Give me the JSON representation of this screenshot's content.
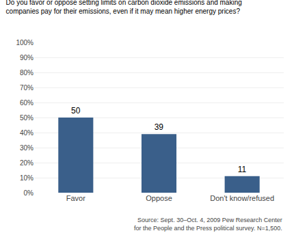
{
  "chart_data": {
    "type": "bar",
    "title": "Do you favor or oppose setting limits on carbon dioxide emissions and making\ncompanies pay for their emissions, even if it may mean higher energy prices?",
    "categories": [
      "Favor",
      "Oppose",
      "Don't know/refused"
    ],
    "values": [
      50,
      39,
      11
    ],
    "color": "#3a5f8a",
    "ylim": [
      0,
      100
    ],
    "yticks": [
      {
        "value": 0,
        "label": "0%"
      },
      {
        "value": 10,
        "label": "10%"
      },
      {
        "value": 20,
        "label": "20%"
      },
      {
        "value": 30,
        "label": "30%"
      },
      {
        "value": 40,
        "label": "40%"
      },
      {
        "value": 50,
        "label": "50%"
      },
      {
        "value": 60,
        "label": "60%"
      },
      {
        "value": 70,
        "label": "70%"
      },
      {
        "value": 80,
        "label": "80%"
      },
      {
        "value": 90,
        "label": "90%"
      },
      {
        "value": 100,
        "label": "100%"
      }
    ],
    "grid": true,
    "data_labels": true,
    "annotations": [
      "Source: Sept. 30–Oct. 4, 2009 Pew Research Center\nfor the People and the Press political survey. N=1,500."
    ]
  }
}
